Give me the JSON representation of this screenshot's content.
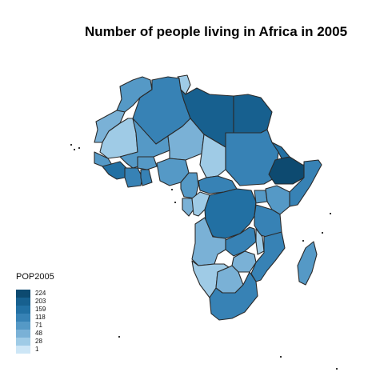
{
  "title": "Number of people living in Africa in 2005",
  "legend": {
    "title": "POP2005",
    "breaks": [
      "224",
      "203",
      "159",
      "118",
      "71",
      "48",
      "28",
      "1"
    ],
    "colors": [
      "#0d4a70",
      "#17608f",
      "#2270a3",
      "#3782b5",
      "#5599c6",
      "#7ab1d6",
      "#9fcbe6",
      "#cde6f6"
    ]
  },
  "map": {
    "border_color": "#2a2a2a",
    "countries": [
      {
        "name": "Morocco",
        "tier": 4
      },
      {
        "name": "Western Sahara",
        "tier": 5
      },
      {
        "name": "Algeria",
        "tier": 3
      },
      {
        "name": "Tunisia",
        "tier": 6
      },
      {
        "name": "Libya",
        "tier": 1
      },
      {
        "name": "Egypt",
        "tier": 1
      },
      {
        "name": "Mauritania",
        "tier": 6
      },
      {
        "name": "Mali",
        "tier": 4
      },
      {
        "name": "Niger",
        "tier": 5
      },
      {
        "name": "Chad",
        "tier": 6
      },
      {
        "name": "Sudan",
        "tier": 3
      },
      {
        "name": "Ethiopia",
        "tier": 0
      },
      {
        "name": "Eritrea",
        "tier": 2
      },
      {
        "name": "Somalia",
        "tier": 3
      },
      {
        "name": "Senegal",
        "tier": 4
      },
      {
        "name": "Guinea",
        "tier": 2
      },
      {
        "name": "Cote d'Ivoire",
        "tier": 3
      },
      {
        "name": "Burkina Faso",
        "tier": 4
      },
      {
        "name": "Ghana",
        "tier": 3
      },
      {
        "name": "Nigeria",
        "tier": 4
      },
      {
        "name": "Cameroon",
        "tier": 4
      },
      {
        "name": "Central African Republic",
        "tier": 3
      },
      {
        "name": "Gabon",
        "tier": 5
      },
      {
        "name": "Congo",
        "tier": 6
      },
      {
        "name": "DR Congo",
        "tier": 2
      },
      {
        "name": "Uganda",
        "tier": 4
      },
      {
        "name": "Kenya",
        "tier": 4
      },
      {
        "name": "Tanzania",
        "tier": 3
      },
      {
        "name": "Angola",
        "tier": 5
      },
      {
        "name": "Zambia",
        "tier": 3
      },
      {
        "name": "Malawi",
        "tier": 6
      },
      {
        "name": "Mozambique",
        "tier": 3
      },
      {
        "name": "Zimbabwe",
        "tier": 5
      },
      {
        "name": "Namibia",
        "tier": 6
      },
      {
        "name": "Botswana",
        "tier": 5
      },
      {
        "name": "South Africa",
        "tier": 3
      },
      {
        "name": "Madagascar",
        "tier": 4
      }
    ]
  }
}
